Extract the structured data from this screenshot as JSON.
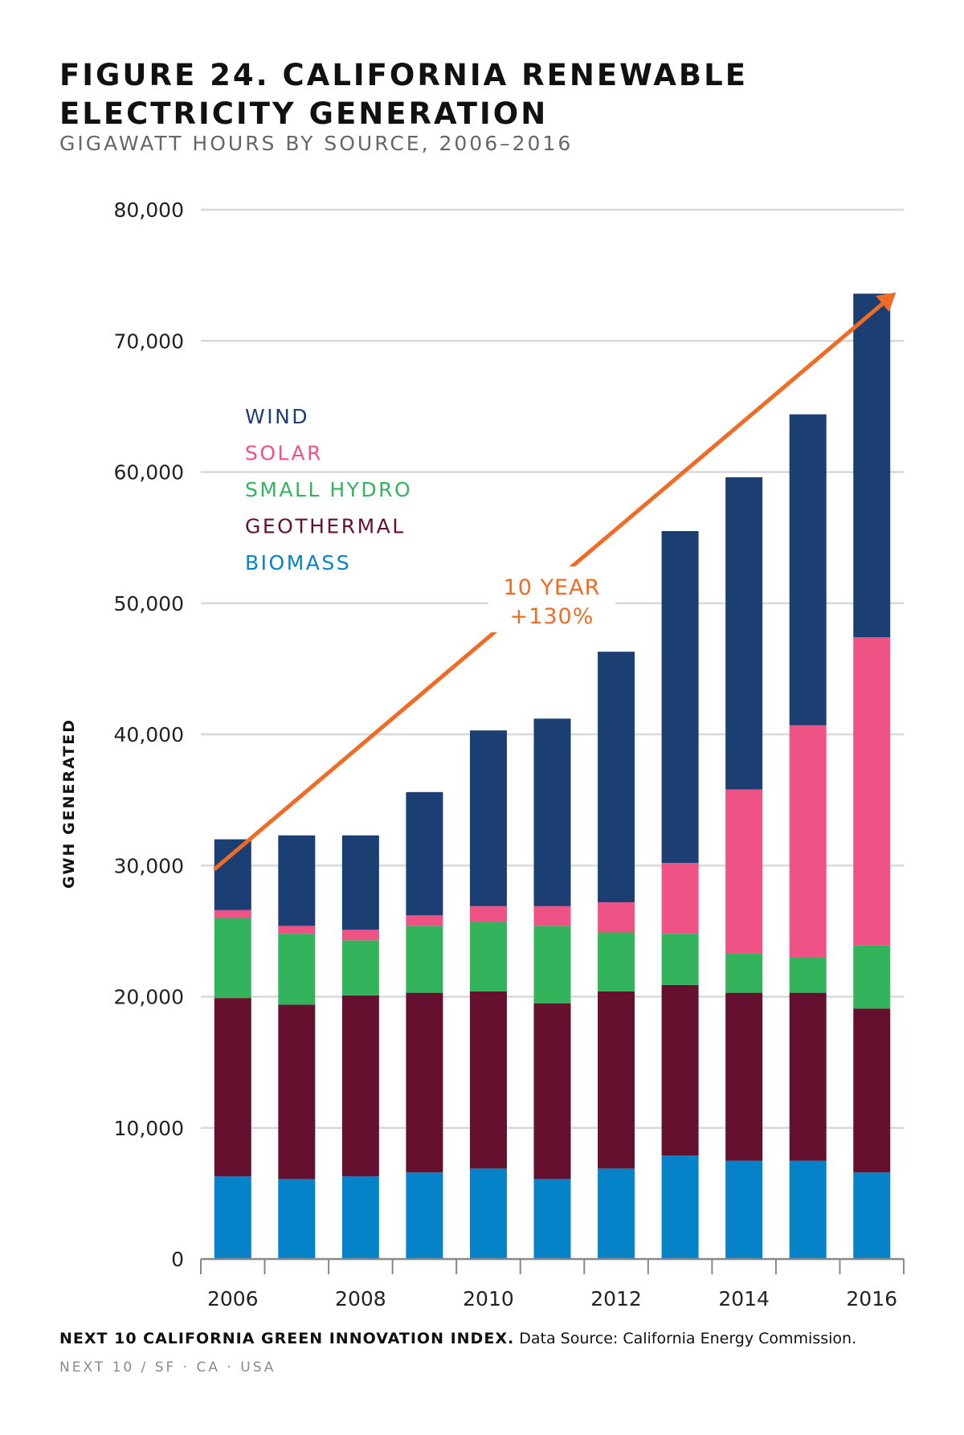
{
  "title_line1": "FIGURE 24. CALIFORNIA RENEWABLE",
  "title_line2": "ELECTRICITY GENERATION",
  "subtitle": "GIGAWATT HOURS BY SOURCE, 2006–2016",
  "footer": {
    "source_bold": "NEXT 10 CALIFORNIA GREEN INNOVATION INDEX.",
    "source_text": " Data Source: California Energy Commission.",
    "org": "NEXT 10  /  SF · CA · USA"
  },
  "colors": {
    "wind": "#1b3f73",
    "solar": "#ef5284",
    "small_hydro": "#34b35d",
    "geothermal": "#66102f",
    "biomass": "#0683c8",
    "arrow": "#f06b24",
    "grid": "#d9d9d9"
  },
  "chart_data": {
    "type": "bar",
    "stacked": true,
    "title": "FIGURE 24. CALIFORNIA RENEWABLE ELECTRICITY GENERATION",
    "subtitle": "GIGAWATT HOURS BY SOURCE, 2006–2016",
    "ylabel": "GWH GENERATED",
    "xlabel": "",
    "categories": [
      "2006",
      "2007",
      "2008",
      "2009",
      "2010",
      "2011",
      "2012",
      "2013",
      "2014",
      "2015",
      "2016"
    ],
    "x_tick_labels": [
      "2006",
      "2008",
      "2010",
      "2012",
      "2014",
      "2016"
    ],
    "ylim": [
      0,
      80000
    ],
    "y_ticks": [
      0,
      10000,
      20000,
      30000,
      40000,
      50000,
      60000,
      70000,
      80000
    ],
    "y_tick_labels": [
      "0",
      "10,000",
      "20,000",
      "30,000",
      "40,000",
      "50,000",
      "60,000",
      "70,000",
      "80,000"
    ],
    "grid": true,
    "legend_position": "left",
    "series": [
      {
        "name": "BIOMASS",
        "color_key": "biomass",
        "values": [
          6300,
          6100,
          6300,
          6600,
          6900,
          6100,
          6900,
          7900,
          7500,
          7500,
          6600
        ]
      },
      {
        "name": "GEOTHERMAL",
        "color_key": "geothermal",
        "values": [
          13600,
          13300,
          13800,
          13700,
          13500,
          13400,
          13500,
          13000,
          12800,
          12800,
          12500
        ]
      },
      {
        "name": "SMALL HYDRO",
        "color_key": "small_hydro",
        "values": [
          6100,
          5400,
          4200,
          5100,
          5300,
          5900,
          4500,
          3900,
          3000,
          2700,
          4800
        ]
      },
      {
        "name": "SOLAR",
        "color_key": "solar",
        "values": [
          600,
          600,
          800,
          800,
          1200,
          1500,
          2300,
          5400,
          12500,
          17700,
          23500
        ]
      },
      {
        "name": "WIND",
        "color_key": "wind",
        "values": [
          5400,
          6900,
          7200,
          9400,
          13400,
          14300,
          19100,
          25300,
          23800,
          23700,
          26200
        ]
      }
    ],
    "legend_order": [
      "WIND",
      "SOLAR",
      "SMALL HYDRO",
      "GEOTHERMAL",
      "BIOMASS"
    ],
    "annotation": {
      "line1": "10 YEAR",
      "line2": "+130%",
      "from": {
        "x": "2006",
        "y": 31000
      },
      "to": {
        "x": "2016",
        "y": 74000
      }
    }
  }
}
